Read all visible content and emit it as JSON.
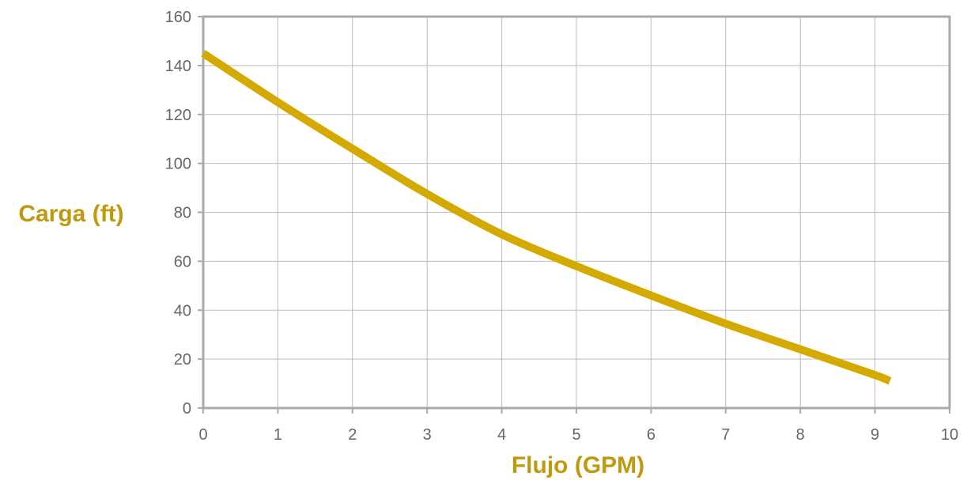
{
  "chart_data": {
    "type": "line",
    "title": "",
    "xlabel": "Flujo (GPM)",
    "ylabel": "Carga (ft)",
    "xlim": [
      0,
      10
    ],
    "ylim": [
      0,
      160
    ],
    "x_ticks": [
      0,
      1,
      2,
      3,
      4,
      5,
      6,
      7,
      8,
      9,
      10
    ],
    "y_ticks": [
      0,
      20,
      40,
      60,
      80,
      100,
      120,
      140,
      160
    ],
    "grid": true,
    "legend": "none",
    "series": [
      {
        "color": "#d4aa00",
        "x": [
          0,
          1,
          2,
          3,
          4,
          5,
          6,
          7,
          8,
          9,
          9.2
        ],
        "y": [
          145,
          125,
          106,
          87.5,
          71,
          58,
          46,
          34.5,
          24,
          13.5,
          11
        ]
      }
    ],
    "colors": {
      "series": "#d4aa00",
      "axis_title": "#c09a0e",
      "grid": "#bdbdbd",
      "frame": "#aaaaaa",
      "tick_text": "#666666"
    }
  }
}
